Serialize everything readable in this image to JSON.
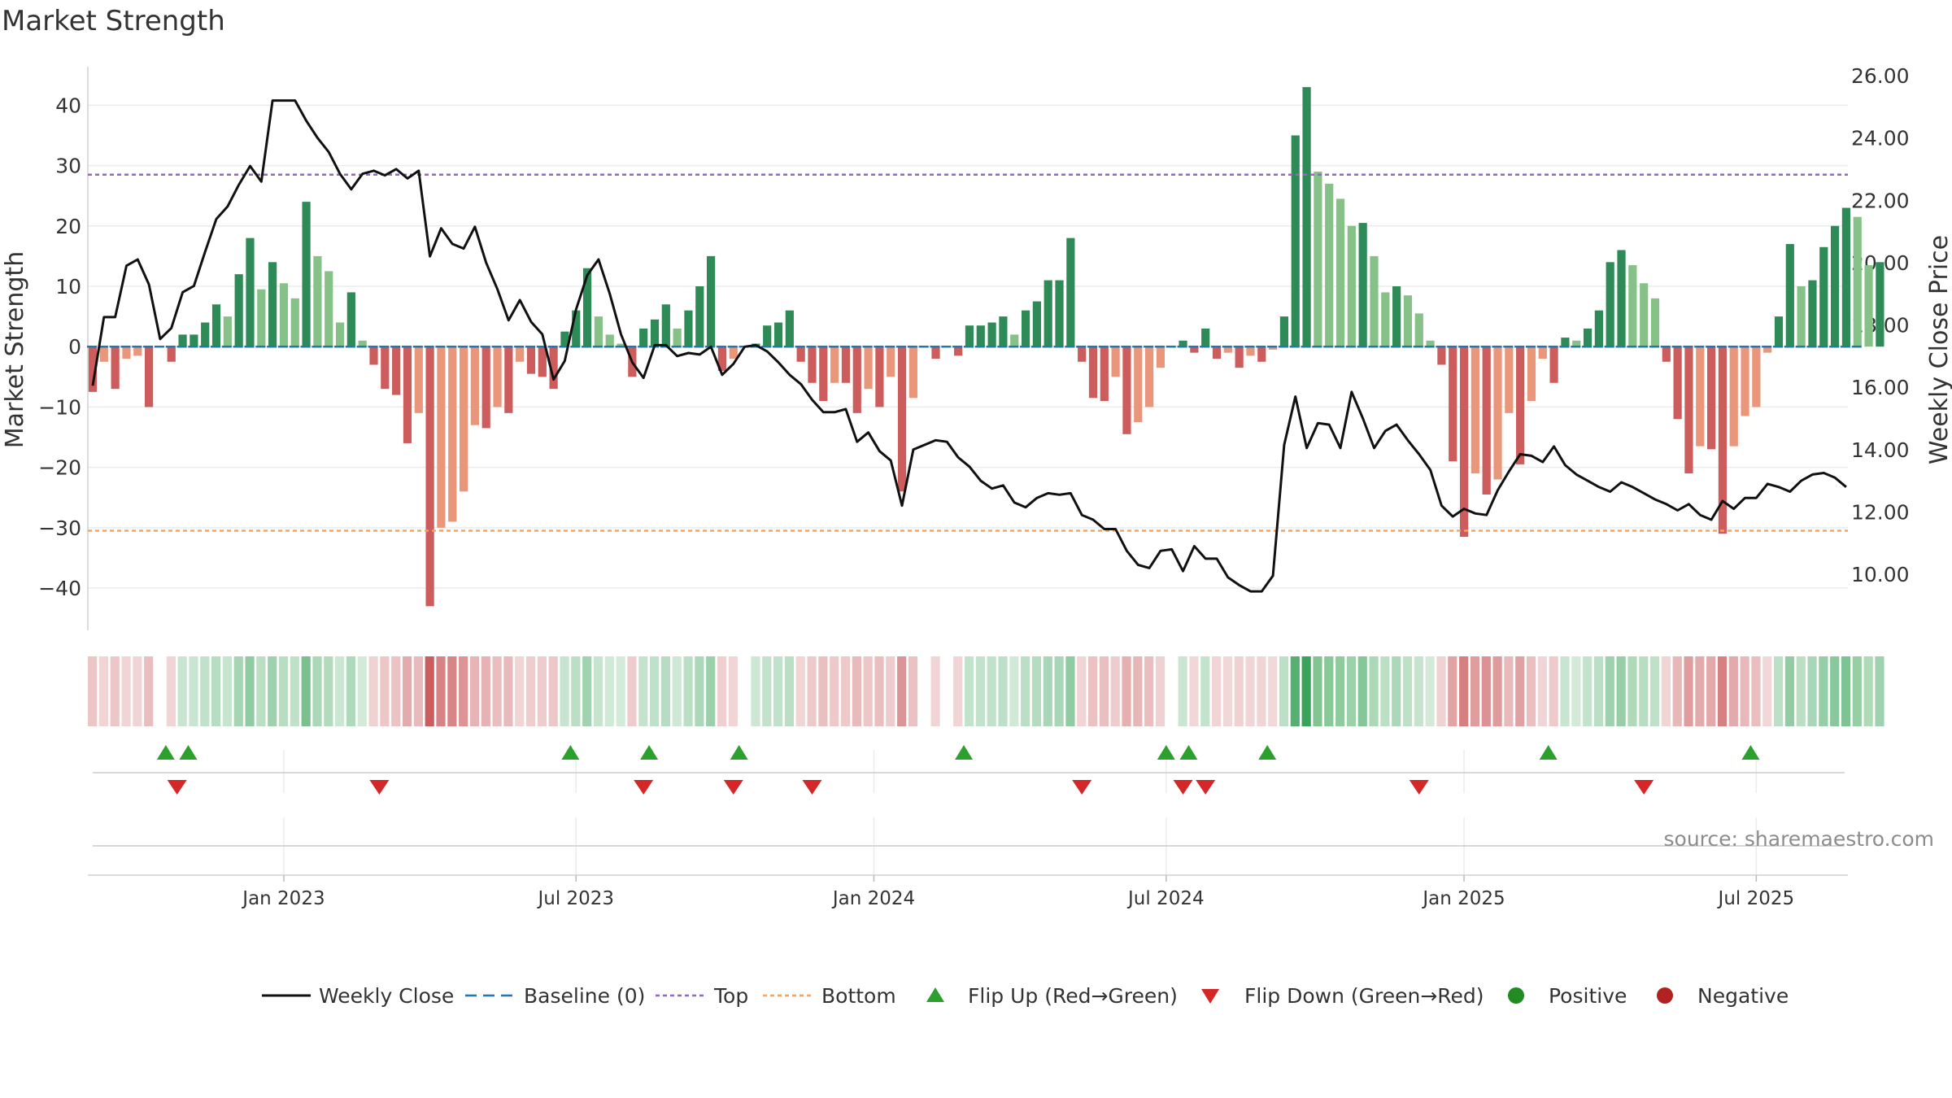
{
  "chart_data": {
    "type": "bar",
    "title": "Market Strength",
    "source": "source: sharemaestro.com",
    "ylabel_left": "Market Strength",
    "ylabel_right": "Weekly Close Price",
    "ylim_left": [
      -47,
      48
    ],
    "ylim_right": [
      8.2,
      26.6
    ],
    "y_ticks_left": [
      40,
      30,
      20,
      10,
      0,
      -10,
      -20,
      -30,
      -40
    ],
    "y_tick_labels_left": [
      "40",
      "30",
      "20",
      "10",
      "0",
      "−10",
      "−20",
      "−30",
      "−40"
    ],
    "y_ticks_right": [
      26,
      24,
      22,
      20,
      18,
      16,
      14,
      12,
      10
    ],
    "y_tick_labels_right": [
      "26.00",
      "24.00",
      "22.00",
      "20.00",
      "18.00",
      "16.00",
      "14.00",
      "12.00",
      "10.00"
    ],
    "x_ticks": [
      {
        "label": "Jan 2023",
        "week": 17
      },
      {
        "label": "Jul 2023",
        "week": 43
      },
      {
        "label": "Jan 2024",
        "week": 69.5
      },
      {
        "label": "Jul 2024",
        "week": 95.5
      },
      {
        "label": "Jan 2025",
        "week": 122
      },
      {
        "label": "Jul 2025",
        "week": 148
      }
    ],
    "week_count": 158,
    "top_threshold": 28.5,
    "bottom_threshold": -30.5,
    "strength": [
      -7.5,
      -2.5,
      -7,
      -2,
      -1.5,
      -10,
      0,
      -2.5,
      2,
      2,
      4,
      7,
      5,
      12,
      18,
      9.5,
      14,
      10.5,
      8,
      24,
      15,
      12.5,
      4,
      9,
      1,
      -3,
      -7,
      -8,
      -16,
      -11,
      -43,
      -30,
      -29,
      -24,
      -13,
      -13.5,
      -10,
      -11,
      -2.5,
      -4.5,
      -5,
      -7,
      2.5,
      6,
      13,
      5,
      2,
      0.5,
      -5,
      3,
      4.5,
      7,
      3,
      6,
      10,
      15,
      -4,
      -2,
      0,
      0.5,
      3.5,
      4,
      6,
      -2.5,
      -6,
      -9,
      -6,
      -6,
      -11,
      -7,
      -10,
      -5,
      -24,
      -8.5,
      0,
      -2,
      0,
      -1.5,
      3.5,
      3.5,
      4,
      5,
      2,
      6,
      7.5,
      11,
      11,
      18,
      -2.5,
      -8.5,
      -9,
      -5,
      -14.5,
      -12.5,
      -10,
      -3.5,
      0,
      1,
      -1,
      3,
      -2,
      -1,
      -3.5,
      -1.5,
      -2.5,
      -0.5,
      5,
      35,
      43,
      29,
      27,
      24.5,
      20,
      20.5,
      15,
      9,
      10,
      8.5,
      5.5,
      1,
      -3,
      -19,
      -31.5,
      -21,
      -24.5,
      -22,
      -11,
      -19.5,
      -9,
      -2,
      -6,
      1.5,
      1,
      3,
      6,
      14,
      16,
      13.5,
      10.5,
      8,
      -2.5,
      -12,
      -21,
      -16.5,
      -17,
      -31,
      -16.5,
      -11.5,
      -10,
      -1,
      5,
      17,
      10,
      11,
      16.5,
      20,
      23,
      21.5,
      13.5,
      14
    ],
    "price": [
      16.05,
      18.25,
      18.25,
      19.9,
      20.1,
      19.3,
      17.55,
      17.9,
      19.05,
      19.25,
      20.35,
      21.4,
      21.8,
      22.5,
      23.1,
      22.6,
      25.2,
      25.2,
      25.2,
      24.55,
      24.0,
      23.55,
      22.85,
      22.35,
      22.85,
      22.95,
      22.8,
      23.0,
      22.7,
      22.95,
      20.2,
      21.1,
      20.6,
      20.45,
      21.15,
      20.0,
      19.15,
      18.15,
      18.8,
      18.1,
      17.7,
      16.25,
      16.85,
      18.5,
      19.6,
      20.1,
      19.0,
      17.7,
      16.8,
      16.3,
      17.35,
      17.35,
      17.0,
      17.1,
      17.05,
      17.3,
      16.4,
      16.75,
      17.3,
      17.35,
      17.15,
      16.8,
      16.4,
      16.1,
      15.6,
      15.2,
      15.2,
      15.3,
      14.25,
      14.55,
      13.95,
      13.65,
      12.2,
      14.0,
      14.15,
      14.3,
      14.25,
      13.75,
      13.45,
      13.0,
      12.75,
      12.85,
      12.3,
      12.15,
      12.45,
      12.6,
      12.55,
      12.6,
      11.9,
      11.75,
      11.45,
      11.45,
      10.75,
      10.3,
      10.2,
      10.75,
      10.8,
      10.1,
      10.9,
      10.5,
      10.5,
      9.9,
      9.65,
      9.45,
      9.45,
      9.95,
      14.15,
      15.7,
      14.05,
      14.85,
      14.8,
      14.05,
      15.85,
      15.0,
      14.05,
      14.6,
      14.8,
      14.3,
      13.85,
      13.35,
      12.2,
      11.85,
      12.1,
      11.95,
      11.9,
      12.7,
      13.3,
      13.85,
      13.8,
      13.6,
      14.1,
      13.5,
      13.2,
      13.0,
      12.8,
      12.65,
      12.95,
      12.8,
      12.6,
      12.4,
      12.25,
      12.05,
      12.25,
      11.9,
      11.75,
      12.35,
      12.1,
      12.45,
      12.45,
      12.9,
      12.8,
      12.65,
      13.0,
      13.2,
      13.25,
      13.1,
      12.8
    ],
    "state_strip_rule": "cell colour follows sign and magnitude of market strength",
    "flip_up_weeks": [
      6.5,
      8.5,
      42.5,
      49.5,
      57.5,
      77.5,
      95.5,
      97.5,
      104.5,
      129.5,
      147.5
    ],
    "flip_down_weeks": [
      7.5,
      25.5,
      49,
      57,
      64,
      88,
      97,
      99,
      118,
      138
    ],
    "legend": [
      {
        "label": "Weekly Close",
        "symbol": "line"
      },
      {
        "label": "Baseline (0)",
        "symbol": "dash"
      },
      {
        "label": "Top",
        "symbol": "dot-purple"
      },
      {
        "label": "Bottom",
        "symbol": "dot-orange"
      },
      {
        "label": "Flip Up (Red→Green)",
        "symbol": "triangle-up"
      },
      {
        "label": "Flip Down (Green→Red)",
        "symbol": "triangle-down"
      },
      {
        "label": "Positive",
        "symbol": "circle-green"
      },
      {
        "label": "Negative",
        "symbol": "circle-red"
      }
    ],
    "colors": {
      "pos_strong": "#2e8b57",
      "pos_weak": "#86c287",
      "neg_strong": "#cd5c5c",
      "neg_weak": "#e9967a",
      "line": "#111111",
      "baseline": "#1f77b4",
      "top": "#9467bd",
      "bottom": "#f4a460",
      "flip_up": "#2ca02c",
      "flip_down": "#d62728",
      "positive": "#228b22",
      "negative": "#b22222"
    }
  }
}
